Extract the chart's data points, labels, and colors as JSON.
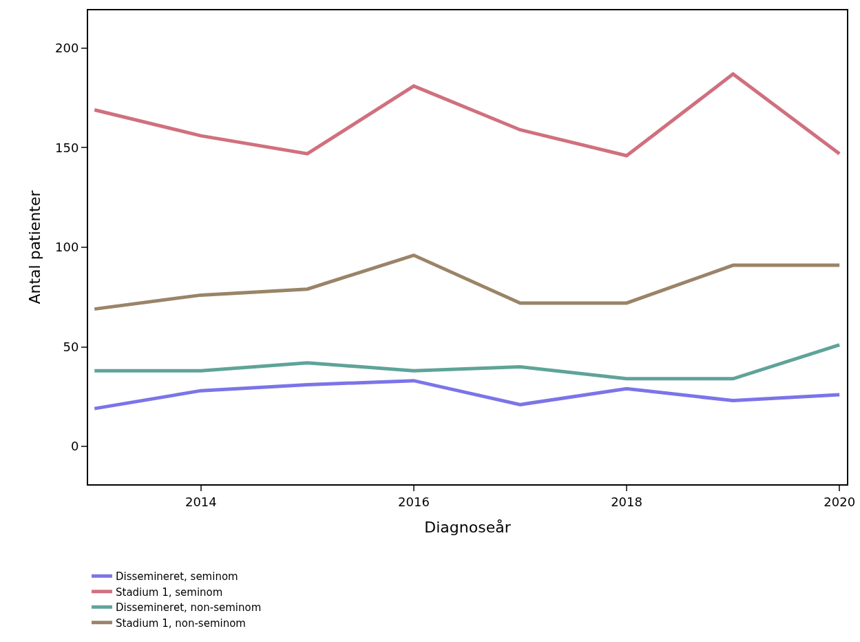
{
  "chart_data": {
    "type": "line",
    "xlabel": "Diagnoseår",
    "ylabel": "Antal patienter",
    "x": [
      2013,
      2014,
      2015,
      2016,
      2017,
      2018,
      2019,
      2020
    ],
    "series": [
      {
        "name": "Dissemineret, seminom",
        "color": "#7b74e8",
        "values": [
          19,
          28,
          31,
          33,
          21,
          29,
          23,
          26
        ]
      },
      {
        "name": "Stadium 1, seminom",
        "color": "#d0707e",
        "values": [
          169,
          156,
          147,
          181,
          159,
          146,
          187,
          147
        ]
      },
      {
        "name": "Dissemineret, non-seminom",
        "color": "#5fa39a",
        "values": [
          38,
          38,
          42,
          38,
          40,
          34,
          34,
          51
        ]
      },
      {
        "name": "Stadium 1, non-seminom",
        "color": "#9a8468",
        "values": [
          69,
          76,
          79,
          96,
          72,
          72,
          91,
          91
        ]
      }
    ],
    "xlim": [
      2012.94,
      2020.07
    ],
    "xticks": [
      2014,
      2016,
      2018,
      2020
    ],
    "ylim": [
      -19,
      219
    ],
    "yticks": [
      0,
      50,
      100,
      150,
      200
    ],
    "grid": false,
    "legend": "bottom",
    "marker": "none",
    "line_style": "solid"
  }
}
